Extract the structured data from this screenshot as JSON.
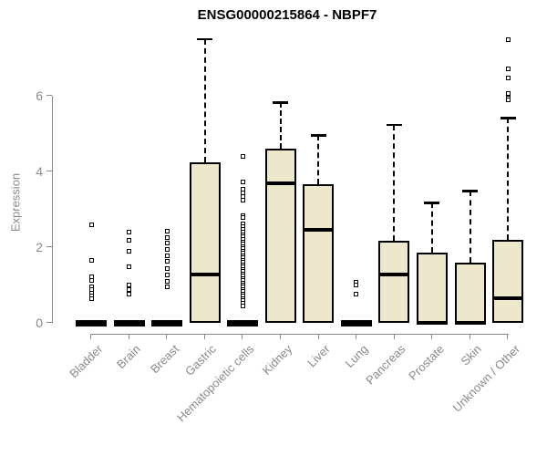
{
  "chart_data": {
    "type": "box",
    "title": "ENSG00000215864 - NBPF7",
    "ylabel": "Expression",
    "xlabel": "",
    "ylim": [
      0,
      7.8
    ],
    "yticks": [
      0,
      2,
      4,
      6
    ],
    "grid": false,
    "legend_position": "none",
    "colors": {
      "box_fill": "#EDE7CB",
      "box_border": "#000000",
      "median": "#000000",
      "whisker": "#000000",
      "outlier": "#000000",
      "axis": "#8A8A8A",
      "title": "#000000"
    },
    "categories": [
      "Bladder",
      "Brain",
      "Breast",
      "Gastric",
      "Hematopoietic cells",
      "Kidney",
      "Liver",
      "Lung",
      "Pancreas",
      "Prostate",
      "Skin",
      "Unknown / Other"
    ],
    "series": [
      {
        "category": "Bladder",
        "q1": 0,
        "median": 0,
        "q3": 0,
        "whisker_low": 0,
        "whisker_high": 0,
        "outliers": [
          2.58,
          1.66,
          1.22,
          1.13,
          0.95,
          0.87,
          0.79,
          0.71,
          0.65
        ]
      },
      {
        "category": "Brain",
        "q1": 0,
        "median": 0,
        "q3": 0,
        "whisker_low": 0,
        "whisker_high": 0,
        "outliers": [
          2.39,
          2.17,
          1.9,
          1.49,
          1.0,
          0.88,
          0.77
        ]
      },
      {
        "category": "Breast",
        "q1": 0,
        "median": 0,
        "q3": 0,
        "whisker_low": 0,
        "whisker_high": 0,
        "outliers": [
          2.43,
          2.26,
          2.1,
          1.95,
          1.78,
          1.62,
          1.43,
          1.26,
          1.1,
          0.94
        ]
      },
      {
        "category": "Gastric",
        "q1": 0,
        "median": 1.28,
        "q3": 4.24,
        "whisker_low": 0,
        "whisker_high": 7.5,
        "outliers": []
      },
      {
        "category": "Hematopoietic cells",
        "q1": 0,
        "median": 0,
        "q3": 0,
        "whisker_low": 0,
        "whisker_high": 0,
        "outliers": [
          4.39,
          3.73,
          3.52,
          3.43,
          3.34,
          3.25,
          2.84,
          2.78,
          2.62,
          2.55,
          2.48,
          2.4,
          2.33,
          2.27,
          2.2,
          2.14,
          2.08,
          2.02,
          1.96,
          1.9,
          1.84,
          1.78,
          1.72,
          1.66,
          1.6,
          1.54,
          1.48,
          1.42,
          1.36,
          1.3,
          1.24,
          1.18,
          1.12,
          1.06,
          1.0,
          0.94,
          0.88,
          0.82,
          0.76,
          0.7,
          0.64,
          0.58,
          0.52,
          0.45
        ]
      },
      {
        "category": "Kidney",
        "q1": 0,
        "median": 3.69,
        "q3": 4.6,
        "whisker_low": 0,
        "whisker_high": 5.83,
        "outliers": []
      },
      {
        "category": "Liver",
        "q1": 0,
        "median": 2.46,
        "q3": 3.66,
        "whisker_low": 0,
        "whisker_high": 4.96,
        "outliers": []
      },
      {
        "category": "Lung",
        "q1": 0,
        "median": 0,
        "q3": 0,
        "whisker_low": 0,
        "whisker_high": 0,
        "outliers": [
          1.08,
          1.0,
          0.77
        ]
      },
      {
        "category": "Pancreas",
        "q1": 0,
        "median": 1.28,
        "q3": 2.17,
        "whisker_low": 0,
        "whisker_high": 5.23,
        "outliers": []
      },
      {
        "category": "Prostate",
        "q1": 0,
        "median": 0,
        "q3": 1.86,
        "whisker_low": 0,
        "whisker_high": 3.18,
        "outliers": []
      },
      {
        "category": "Skin",
        "q1": 0,
        "median": 0,
        "q3": 1.59,
        "whisker_low": 0,
        "whisker_high": 3.49,
        "outliers": []
      },
      {
        "category": "Unknown / Other",
        "q1": 0,
        "median": 0.65,
        "q3": 2.19,
        "whisker_low": 0,
        "whisker_high": 5.42,
        "outliers": [
          7.49,
          6.72,
          6.46,
          6.05,
          5.95,
          5.88
        ]
      }
    ]
  }
}
